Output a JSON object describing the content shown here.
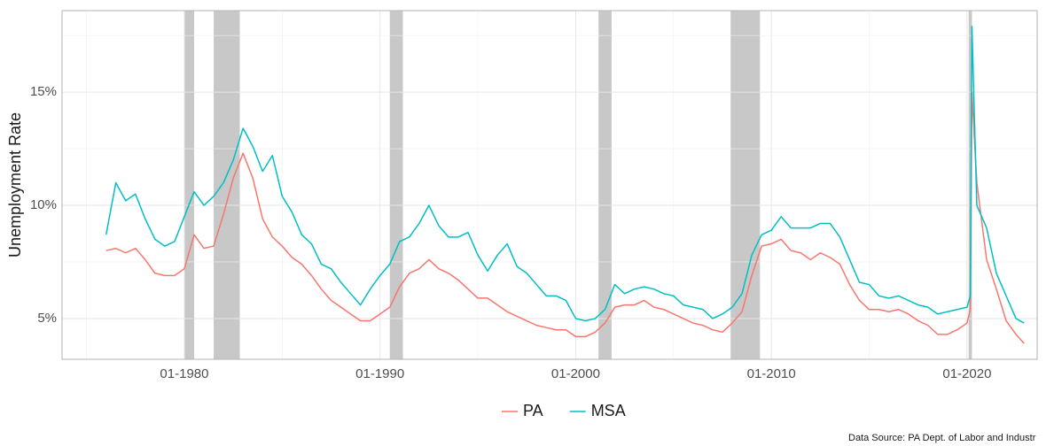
{
  "chart_data": {
    "type": "line",
    "y_label": "Unemployment Rate",
    "caption": "Data Source: PA Dept. of Labor and Industr",
    "xlim": [
      "1973-10",
      "2023-08"
    ],
    "xticks": [
      {
        "value": "1980-01",
        "label": "01-1980"
      },
      {
        "value": "1990-01",
        "label": "01-1990"
      },
      {
        "value": "2000-01",
        "label": "01-2000"
      },
      {
        "value": "2010-01",
        "label": "01-2010"
      },
      {
        "value": "2020-01",
        "label": "01-2020"
      }
    ],
    "ylim": [
      3.2,
      18.6
    ],
    "yticks": [
      {
        "value": 5,
        "label": "5%"
      },
      {
        "value": 10,
        "label": "10%"
      },
      {
        "value": 15,
        "label": "15%"
      }
    ],
    "grid": true,
    "legend": "bottom",
    "recession_color": "#c8c8c8",
    "recessions": [
      {
        "start": "1980-01",
        "end": "1980-07"
      },
      {
        "start": "1981-07",
        "end": "1982-11"
      },
      {
        "start": "1990-07",
        "end": "1991-03"
      },
      {
        "start": "2001-03",
        "end": "2001-11"
      },
      {
        "start": "2007-12",
        "end": "2009-06"
      },
      {
        "start": "2020-02",
        "end": "2020-04"
      }
    ],
    "x": [
      "1976-01",
      "1976-07",
      "1977-01",
      "1977-07",
      "1978-01",
      "1978-07",
      "1979-01",
      "1979-07",
      "1980-01",
      "1980-07",
      "1981-01",
      "1981-07",
      "1982-01",
      "1982-07",
      "1983-01",
      "1983-07",
      "1984-01",
      "1984-07",
      "1985-01",
      "1985-07",
      "1986-01",
      "1986-07",
      "1987-01",
      "1987-07",
      "1988-01",
      "1988-07",
      "1989-01",
      "1989-07",
      "1990-01",
      "1990-07",
      "1991-01",
      "1991-07",
      "1992-01",
      "1992-07",
      "1993-01",
      "1993-07",
      "1994-01",
      "1994-07",
      "1995-01",
      "1995-07",
      "1996-01",
      "1996-07",
      "1997-01",
      "1997-07",
      "1998-01",
      "1998-07",
      "1999-01",
      "1999-07",
      "2000-01",
      "2000-07",
      "2001-01",
      "2001-07",
      "2002-01",
      "2002-07",
      "2003-01",
      "2003-07",
      "2004-01",
      "2004-07",
      "2005-01",
      "2005-07",
      "2006-01",
      "2006-07",
      "2007-01",
      "2007-07",
      "2008-01",
      "2008-07",
      "2009-01",
      "2009-07",
      "2010-01",
      "2010-07",
      "2011-01",
      "2011-07",
      "2012-01",
      "2012-07",
      "2013-01",
      "2013-07",
      "2014-01",
      "2014-07",
      "2015-01",
      "2015-07",
      "2016-01",
      "2016-07",
      "2017-01",
      "2017-07",
      "2018-01",
      "2018-07",
      "2019-01",
      "2019-07",
      "2020-01",
      "2020-03",
      "2020-04",
      "2020-07",
      "2021-01",
      "2021-07",
      "2022-01",
      "2022-07",
      "2022-12"
    ],
    "series": [
      {
        "name": "PA",
        "color": "#F8766D",
        "values": [
          8.0,
          8.1,
          7.9,
          8.1,
          7.6,
          7.0,
          6.9,
          6.9,
          7.2,
          8.7,
          8.1,
          8.2,
          9.6,
          11.2,
          12.3,
          11.2,
          9.4,
          8.6,
          8.2,
          7.7,
          7.4,
          6.9,
          6.3,
          5.8,
          5.5,
          5.2,
          4.9,
          4.9,
          5.2,
          5.5,
          6.4,
          7.0,
          7.2,
          7.6,
          7.2,
          7.0,
          6.7,
          6.3,
          5.9,
          5.9,
          5.6,
          5.3,
          5.1,
          4.9,
          4.7,
          4.6,
          4.5,
          4.5,
          4.2,
          4.2,
          4.4,
          4.8,
          5.5,
          5.6,
          5.6,
          5.8,
          5.5,
          5.4,
          5.2,
          5.0,
          4.8,
          4.7,
          4.5,
          4.4,
          4.8,
          5.3,
          6.9,
          8.2,
          8.3,
          8.5,
          8.0,
          7.9,
          7.6,
          7.9,
          7.7,
          7.4,
          6.5,
          5.8,
          5.4,
          5.4,
          5.3,
          5.4,
          5.2,
          4.9,
          4.7,
          4.3,
          4.3,
          4.5,
          4.8,
          5.4,
          15.0,
          11.0,
          7.6,
          6.3,
          4.9,
          4.3,
          3.9
        ]
      },
      {
        "name": "MSA",
        "color": "#00BFC4",
        "values": [
          8.7,
          11.0,
          10.2,
          10.5,
          9.4,
          8.5,
          8.2,
          8.4,
          9.5,
          10.6,
          10.0,
          10.4,
          11.0,
          12.0,
          13.4,
          12.6,
          11.5,
          12.2,
          10.4,
          9.7,
          8.7,
          8.3,
          7.4,
          7.2,
          6.6,
          6.1,
          5.6,
          6.3,
          6.9,
          7.4,
          8.4,
          8.6,
          9.2,
          10.0,
          9.1,
          8.6,
          8.6,
          8.8,
          7.8,
          7.1,
          7.8,
          8.3,
          7.3,
          7.0,
          6.5,
          6.0,
          6.0,
          5.8,
          5.0,
          4.9,
          5.0,
          5.4,
          6.5,
          6.1,
          6.3,
          6.4,
          6.3,
          6.1,
          6.0,
          5.6,
          5.5,
          5.4,
          5.0,
          5.2,
          5.5,
          6.1,
          7.8,
          8.7,
          8.9,
          9.5,
          9.0,
          9.0,
          9.0,
          9.2,
          9.2,
          8.6,
          7.6,
          6.6,
          6.5,
          6.0,
          5.9,
          6.0,
          5.8,
          5.6,
          5.5,
          5.2,
          5.3,
          5.4,
          5.5,
          6.0,
          17.9,
          10.0,
          9.0,
          7.0,
          6.0,
          5.0,
          4.8
        ]
      }
    ]
  }
}
